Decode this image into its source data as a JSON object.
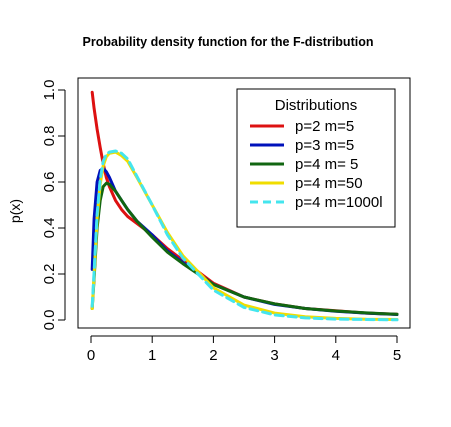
{
  "chart_data": {
    "type": "line",
    "title": "Probability density function for the F-distribution",
    "xlabel": "",
    "ylabel": "p(x)",
    "xlim": [
      0,
      5
    ],
    "ylim": [
      0,
      1.0
    ],
    "x_ticks": [
      "0",
      "1",
      "2",
      "3",
      "4",
      "5"
    ],
    "y_ticks": [
      "0.0",
      "0.2",
      "0.4",
      "0.6",
      "0.8",
      "1.0"
    ],
    "grid": false,
    "legend": {
      "title": "Distributions",
      "position": "top-right"
    },
    "x": [
      0.02,
      0.05,
      0.1,
      0.15,
      0.2,
      0.25,
      0.3,
      0.4,
      0.5,
      0.6,
      0.75,
      1.0,
      1.25,
      1.5,
      2.0,
      2.5,
      3.0,
      3.5,
      4.0,
      4.5,
      5.0
    ],
    "series": [
      {
        "name": "p=2 m=5",
        "color": "#dd1111",
        "dash": "solid",
        "values": [
          0.99,
          0.92,
          0.83,
          0.75,
          0.68,
          0.62,
          0.58,
          0.52,
          0.48,
          0.45,
          0.42,
          0.37,
          0.31,
          0.26,
          0.16,
          0.1,
          0.07,
          0.05,
          0.04,
          0.03,
          0.025
        ]
      },
      {
        "name": "p=3 m=5",
        "color": "#0011bb",
        "dash": "solid",
        "values": [
          0.22,
          0.44,
          0.6,
          0.65,
          0.66,
          0.645,
          0.62,
          0.56,
          0.52,
          0.48,
          0.43,
          0.37,
          0.3,
          0.25,
          0.155,
          0.1,
          0.068,
          0.05,
          0.038,
          0.03,
          0.024
        ]
      },
      {
        "name": "p=4 m= 5",
        "color": "#116611",
        "dash": "solid",
        "values": [
          0.05,
          0.18,
          0.4,
          0.52,
          0.58,
          0.595,
          0.59,
          0.56,
          0.52,
          0.48,
          0.43,
          0.36,
          0.295,
          0.245,
          0.155,
          0.1,
          0.07,
          0.05,
          0.039,
          0.031,
          0.025
        ]
      },
      {
        "name": "p=4 m=50",
        "color": "#f0dd00",
        "dash": "solid",
        "values": [
          0.05,
          0.2,
          0.44,
          0.59,
          0.67,
          0.71,
          0.725,
          0.73,
          0.715,
          0.69,
          0.62,
          0.5,
          0.38,
          0.28,
          0.14,
          0.065,
          0.03,
          0.014,
          0.007,
          0.003,
          0.002
        ]
      },
      {
        "name": "p=4 m=1000l",
        "color": "#44e5ee",
        "dash": "dashed",
        "values": [
          0.06,
          0.21,
          0.46,
          0.61,
          0.69,
          0.72,
          0.73,
          0.735,
          0.725,
          0.7,
          0.625,
          0.5,
          0.37,
          0.27,
          0.13,
          0.055,
          0.022,
          0.009,
          0.004,
          0.002,
          0.001
        ]
      }
    ]
  }
}
